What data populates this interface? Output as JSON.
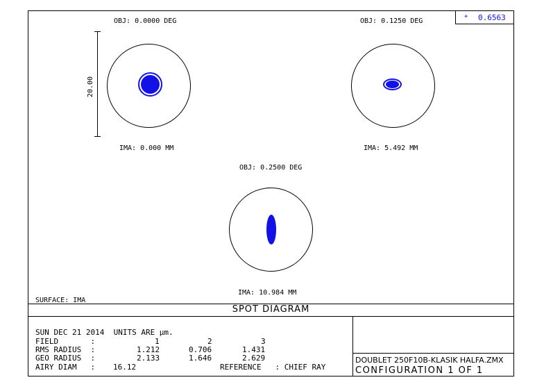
{
  "legend": {
    "marker": "+",
    "wavelength": "0.6563",
    "color": "#1212e6"
  },
  "scale_bar": {
    "value": "20.00"
  },
  "fields": [
    {
      "obj_label": "OBJ: 0.0000 DEG",
      "ima_label": "IMA: 0.000 MM"
    },
    {
      "obj_label": "OBJ: 0.1250 DEG",
      "ima_label": "IMA: 5.492 MM"
    },
    {
      "obj_label": "OBJ: 0.2500 DEG",
      "ima_label": "IMA: 10.984 MM"
    }
  ],
  "surface": "SURFACE: IMA",
  "title": "SPOT DIAGRAM",
  "stats": {
    "date_line": "SUN DEC 21 2014  UNITS ARE µm.",
    "field_label": "FIELD       :",
    "field_values": [
      "1",
      "2",
      "3"
    ],
    "rms_label": "RMS RADIUS  :",
    "rms_values": [
      "1.212",
      "0.706",
      "1.431"
    ],
    "geo_label": "GEO RADIUS  :",
    "geo_values": [
      "2.133",
      "1.646",
      "2.629"
    ],
    "airy_label": "AIRY DIAM   :",
    "airy_value": "16.12",
    "reference": "REFERENCE   : CHIEF RAY"
  },
  "file": {
    "name": "DOUBLET 250F10B-KLASIK HALFA.ZMX",
    "configuration": "CONFIGURATION 1 OF 1"
  }
}
